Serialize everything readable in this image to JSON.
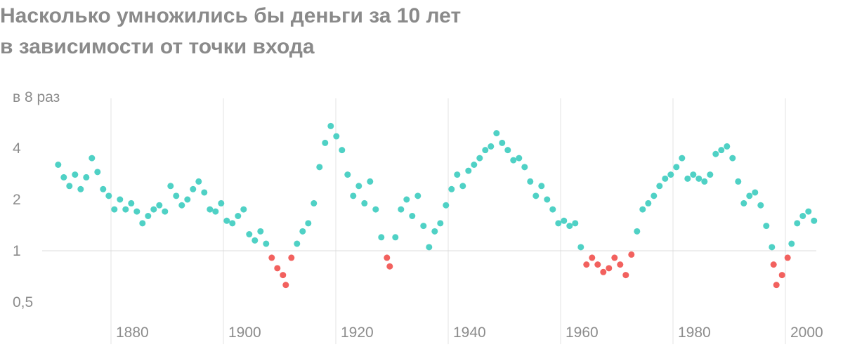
{
  "chart_data": {
    "type": "scatter",
    "title": [
      "Насколько умножились бы деньги за 10 лет",
      "в зависимости от точки входа"
    ],
    "log_y": true,
    "xlim": [
      1860.25,
      2006.75
    ],
    "xticks": [
      1880,
      1900,
      1920,
      1940,
      1960,
      1980,
      2000
    ],
    "ylim": [
      0.4,
      8
    ],
    "yticks": [
      {
        "value": 0.5,
        "label": "0,5"
      },
      1,
      2,
      4,
      {
        "value": 8,
        "label": "в 8 раз"
      }
    ],
    "reference_line": 1,
    "series": [
      {
        "color": "#4fd1c5",
        "x": [
          1870.6,
          1871.6,
          1872.6,
          1873.6,
          1874.6,
          1875.6,
          1876.6,
          1877.6,
          1878.6,
          1879.6,
          1880.6,
          1881.6,
          1882.6,
          1883.6,
          1884.6,
          1885.6,
          1886.6,
          1887.6,
          1888.6,
          1889.6,
          1890.6,
          1891.6,
          1892.6,
          1893.6,
          1894.6,
          1895.6,
          1896.6,
          1897.6,
          1898.6,
          1899.6,
          1900.6,
          1901.6,
          1902.6,
          1903.6,
          1904.6,
          1905.6,
          1906.6,
          1907.6,
          1913.1,
          1914.1,
          1915.1,
          1916.1,
          1917.1,
          1918.1,
          1919.1,
          1920.1,
          1921.1,
          1922.1,
          1923.1,
          1924.1,
          1925.1,
          1926.1,
          1927.1,
          1928.1,
          1930.6,
          1931.6,
          1932.6,
          1933.6,
          1934.6,
          1935.6,
          1936.6,
          1937.6,
          1938.6,
          1939.6,
          1940.6,
          1941.6,
          1942.6,
          1943.6,
          1944.6,
          1945.6,
          1946.6,
          1947.6,
          1948.6,
          1949.6,
          1950.6,
          1951.6,
          1952.6,
          1953.6,
          1954.6,
          1955.6,
          1956.6,
          1957.6,
          1958.6,
          1959.6,
          1960.6,
          1961.6,
          1962.6,
          1963.6,
          1973.6,
          1974.6,
          1975.6,
          1976.6,
          1977.6,
          1978.6,
          1979.6,
          1980.6,
          1981.6,
          1982.6,
          1983.6,
          1984.6,
          1985.6,
          1986.6,
          1987.6,
          1988.6,
          1989.6,
          1990.6,
          1991.6,
          1992.6,
          1993.6,
          1994.6,
          1995.6,
          1996.6,
          1997.6,
          2001.1,
          2002.1,
          2003.1,
          2004.1,
          2005.1
        ],
        "values": [
          3.2,
          2.7,
          2.4,
          2.8,
          2.3,
          2.7,
          3.5,
          2.9,
          2.3,
          2.1,
          1.75,
          2.0,
          1.75,
          1.9,
          1.7,
          1.45,
          1.6,
          1.75,
          1.85,
          1.7,
          2.4,
          2.1,
          1.85,
          2.0,
          2.3,
          2.55,
          2.2,
          1.75,
          1.7,
          1.9,
          1.5,
          1.45,
          1.6,
          1.75,
          1.25,
          1.15,
          1.3,
          1.1,
          1.1,
          1.3,
          1.45,
          1.9,
          3.1,
          4.3,
          5.4,
          4.7,
          3.9,
          2.8,
          2.1,
          2.4,
          1.9,
          2.55,
          1.75,
          1.2,
          1.2,
          1.75,
          2.0,
          1.6,
          2.1,
          1.4,
          1.05,
          1.3,
          1.45,
          1.85,
          2.3,
          2.8,
          2.4,
          2.95,
          3.2,
          3.5,
          3.9,
          4.1,
          4.9,
          4.3,
          3.9,
          3.4,
          3.5,
          3.1,
          2.55,
          2.1,
          2.4,
          2.0,
          1.75,
          1.45,
          1.5,
          1.4,
          1.45,
          1.05,
          1.3,
          1.75,
          1.9,
          2.1,
          2.4,
          2.65,
          2.8,
          3.1,
          3.5,
          2.65,
          2.8,
          2.65,
          2.55,
          2.8,
          3.7,
          3.9,
          4.1,
          3.5,
          2.55,
          1.9,
          2.1,
          2.2,
          1.85,
          1.4,
          1.05,
          1.1,
          1.45,
          1.6,
          1.7,
          1.5
        ]
      },
      {
        "color": "#f2615e",
        "x": [
          1908.6,
          1909.6,
          1910.6,
          1911.1,
          1912.1,
          1929.1,
          1929.6,
          1964.6,
          1965.6,
          1966.6,
          1967.6,
          1968.6,
          1969.6,
          1970.6,
          1971.6,
          1972.6,
          1997.9,
          1998.4,
          1999.4,
          2000.4
        ],
        "values": [
          0.91,
          0.79,
          0.72,
          0.63,
          0.91,
          0.91,
          0.81,
          0.83,
          0.91,
          0.83,
          0.75,
          0.79,
          0.91,
          0.83,
          0.72,
          0.95,
          0.83,
          0.63,
          0.72,
          0.91
        ]
      }
    ]
  }
}
